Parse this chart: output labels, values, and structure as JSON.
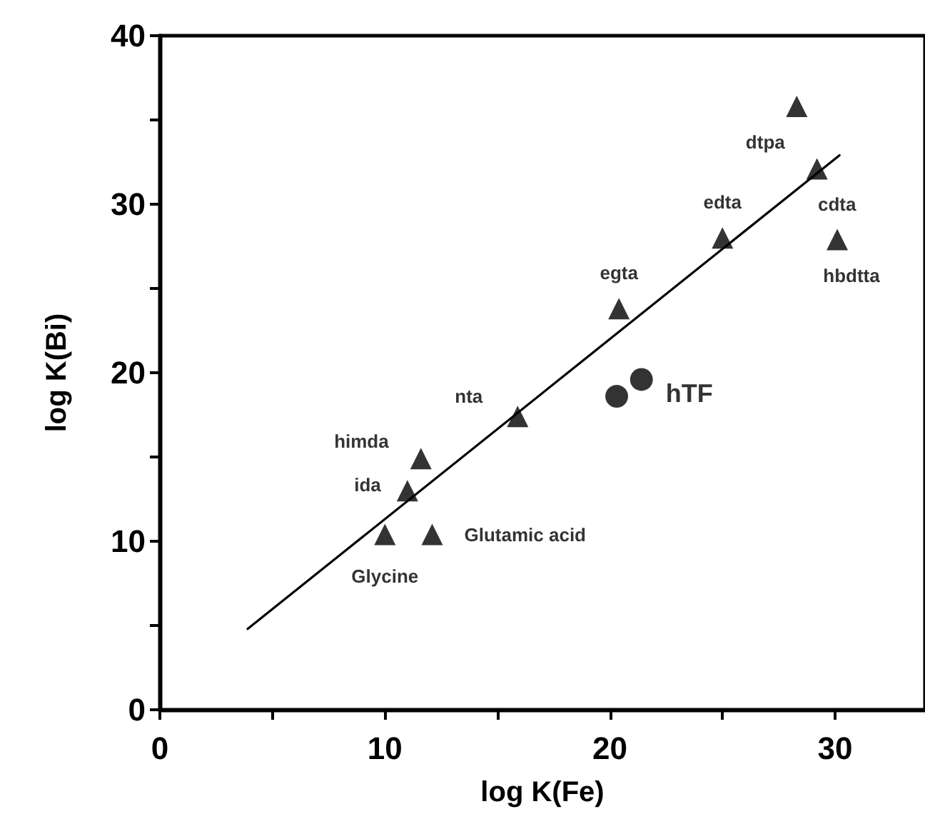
{
  "chart_data": {
    "type": "scatter",
    "xlabel": "log K(Fe)",
    "ylabel": "log K(Bi)",
    "xlim": [
      0,
      34
    ],
    "xticks": [
      0,
      {
        "value": 5,
        "label": null
      },
      10,
      {
        "value": 15,
        "label": null
      },
      20,
      {
        "value": 25,
        "label": null
      },
      30
    ],
    "ylim": [
      0,
      40
    ],
    "yticks": [
      0,
      {
        "value": 5,
        "label": null
      },
      10,
      {
        "value": 15,
        "label": null
      },
      20,
      {
        "value": 25,
        "label": null
      },
      30,
      {
        "value": 35,
        "label": null
      },
      40
    ],
    "grid": false,
    "series": [
      {
        "marker": "triangle",
        "color": "#000000",
        "x": [
          10.0,
          12.1,
          11.0,
          11.6,
          15.9,
          20.4,
          25.0,
          28.3,
          29.2,
          30.1
        ],
        "values": [
          10.4,
          10.4,
          13.0,
          14.9,
          17.4,
          23.8,
          28.0,
          35.8,
          32.1,
          27.9
        ],
        "value_labels": [
          "Glycine",
          "Glutamic acid",
          "ida",
          "himda",
          "nta",
          "egta",
          "edta",
          "dtpa",
          "cdta",
          "hbdtta"
        ]
      },
      {
        "marker": "circle",
        "color": "#000000",
        "x": [
          20.3,
          21.4
        ],
        "values": [
          18.6,
          19.6
        ],
        "value_labels": [
          null,
          "hTF"
        ]
      },
      {
        "type": "line",
        "marker": "none",
        "line_style": "solid",
        "color": "#000000",
        "x": [
          3.9,
          30.2
        ],
        "values": [
          4.8,
          32.9
        ]
      }
    ]
  }
}
